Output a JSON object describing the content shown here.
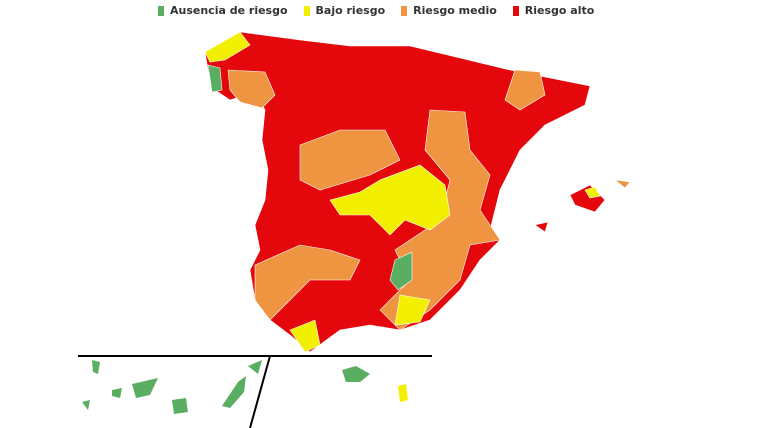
{
  "legend": [
    {
      "label": "Ausencia de riesgo",
      "color": "#5aae61"
    },
    {
      "label": "Bajo riesgo",
      "color": "#f2ef00"
    },
    {
      "label": "Riesgo medio",
      "color": "#ef9440"
    },
    {
      "label": "Riesgo alto",
      "color": "#e4070c"
    }
  ]
}
